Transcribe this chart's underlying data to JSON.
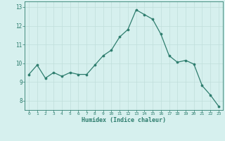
{
  "x": [
    0,
    1,
    2,
    3,
    4,
    5,
    6,
    7,
    8,
    9,
    10,
    11,
    12,
    13,
    14,
    15,
    16,
    17,
    18,
    19,
    20,
    21,
    22,
    23
  ],
  "y": [
    9.4,
    9.9,
    9.2,
    9.5,
    9.3,
    9.5,
    9.4,
    9.4,
    9.9,
    10.4,
    10.7,
    11.4,
    11.8,
    12.85,
    12.6,
    12.35,
    11.55,
    10.4,
    10.05,
    10.15,
    9.95,
    8.8,
    8.3,
    7.7
  ],
  "xlabel": "Humidex (Indice chaleur)",
  "ylim": [
    7.5,
    13.3
  ],
  "xlim": [
    -0.5,
    23.5
  ],
  "yticks": [
    8,
    9,
    10,
    11,
    12,
    13
  ],
  "xticks": [
    0,
    1,
    2,
    3,
    4,
    5,
    6,
    7,
    8,
    9,
    10,
    11,
    12,
    13,
    14,
    15,
    16,
    17,
    18,
    19,
    20,
    21,
    22,
    23
  ],
  "line_color": "#2e7d6e",
  "marker_color": "#2e7d6e",
  "bg_color": "#d6f0ee",
  "grid_color": "#c0deda",
  "axis_color": "#2e7d6e",
  "tick_color": "#2e7d6e",
  "label_color": "#2e7d6e"
}
